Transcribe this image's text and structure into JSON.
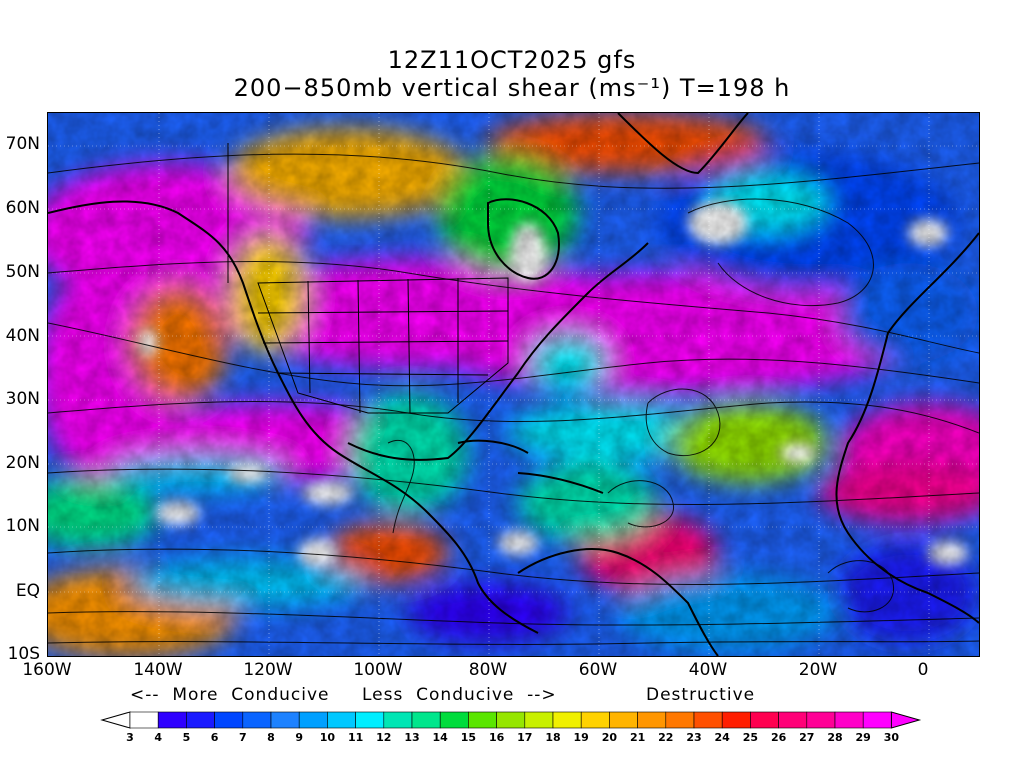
{
  "title_line1": "12Z11OCT2025 gfs",
  "title_line2": "200−850mb vertical shear (ms⁻¹) T=198 h",
  "y_axis_labels": [
    "70N",
    "60N",
    "50N",
    "40N",
    "30N",
    "20N",
    "10N",
    "EQ",
    "10S"
  ],
  "x_axis_labels": [
    "160W",
    "140W",
    "120W",
    "100W",
    "80W",
    "60W",
    "40W",
    "20W",
    "0"
  ],
  "scale_annotations": {
    "more_conducive": "<--  More  Conducive",
    "less_conducive": "Less  Conducive  -->",
    "destructive": "Destructive"
  },
  "colorbar": {
    "labels": [
      "3",
      "4",
      "5",
      "6",
      "7",
      "8",
      "9",
      "10",
      "11",
      "12",
      "13",
      "14",
      "15",
      "16",
      "17",
      "18",
      "19",
      "20",
      "21",
      "22",
      "23",
      "24",
      "25",
      "26",
      "27",
      "28",
      "29",
      "30"
    ],
    "colors": [
      "#ffffff",
      "#2f00ff",
      "#1a1aff",
      "#0046ff",
      "#0a64ff",
      "#1e82ff",
      "#00a0ff",
      "#00c8ff",
      "#00eeff",
      "#00e6b4",
      "#00e68c",
      "#00dc3c",
      "#5ae600",
      "#96e600",
      "#c8f000",
      "#f0f000",
      "#ffd200",
      "#ffb400",
      "#ff9600",
      "#ff7800",
      "#ff5000",
      "#ff1e00",
      "#ff0050",
      "#ff0078",
      "#ff0096",
      "#ff00c8",
      "#ff00ff"
    ],
    "end_left": "#ffffff",
    "end_right": "#ff00ff"
  }
}
